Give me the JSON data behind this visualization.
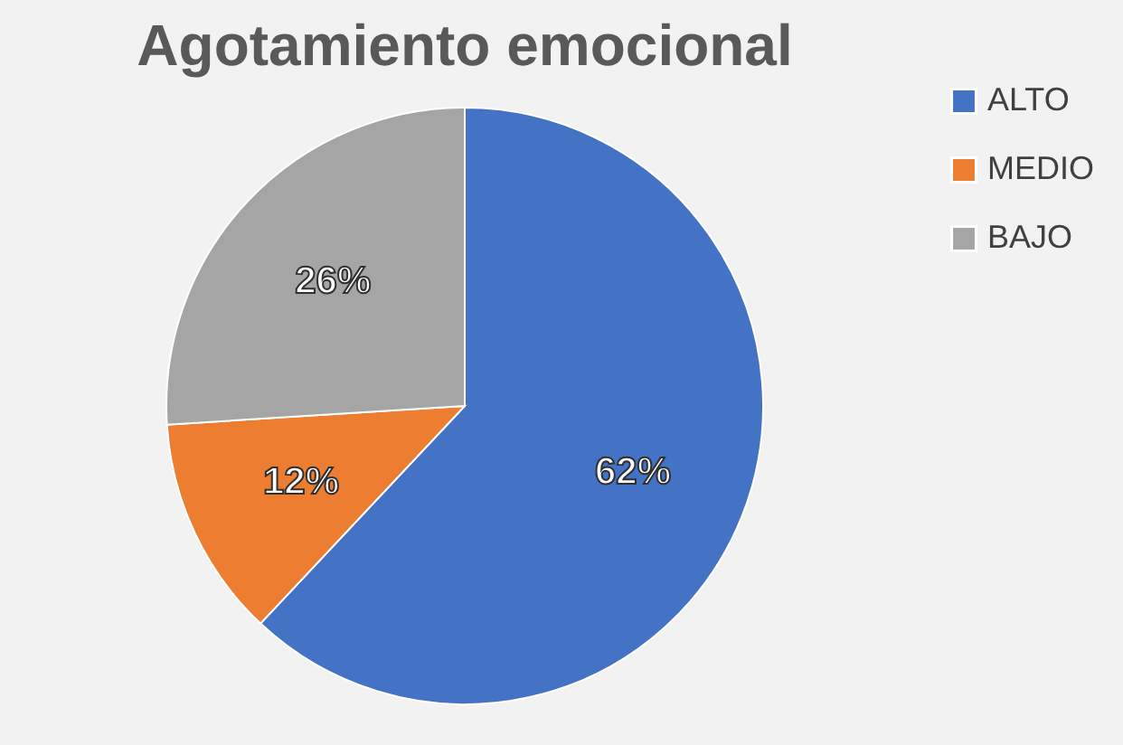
{
  "chart_data": {
    "type": "pie",
    "title": "Agotamiento emocional",
    "categories": [
      "ALTO",
      "MEDIO",
      "BAJO"
    ],
    "values": [
      62,
      12,
      26
    ],
    "colors": [
      "#4472c4",
      "#ed7d31",
      "#a5a5a5"
    ],
    "value_labels": [
      "62%",
      "12%",
      "26%"
    ],
    "legend": "right"
  }
}
